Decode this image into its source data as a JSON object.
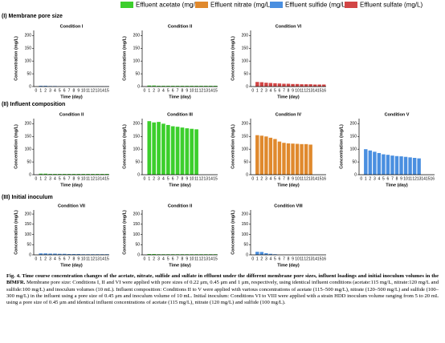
{
  "legend": [
    {
      "name": "Effluent acetate (mg/L)",
      "color": "#3ccf2c"
    },
    {
      "name": "Effluent nitrate (mg/L)",
      "color": "#e0892d"
    },
    {
      "name": "Effluent sulfide (mg/L)",
      "color": "#4a8fe0"
    },
    {
      "name": "Effluent sulfate (mg/L)",
      "color": "#d24545"
    }
  ],
  "rows": [
    {
      "label": "(I) Membrane pore size",
      "charts": [
        {
          "type": "bar",
          "title": "Condition I",
          "ylabel": "Concentration (mg/L)",
          "xlabel": "Time (day)",
          "color": "#4a8fe0",
          "categories": [
            0,
            1,
            2,
            3,
            4,
            5,
            6,
            7,
            8,
            9,
            10,
            11,
            12,
            13,
            14,
            15
          ],
          "values": [
            null,
            3,
            3,
            2,
            2,
            1,
            1,
            1,
            1,
            1,
            1,
            1,
            1,
            1,
            1,
            1
          ],
          "ylim": [
            0,
            220
          ],
          "yticks": [
            0,
            50,
            100,
            150,
            200
          ]
        },
        {
          "type": "bar",
          "title": "Condition II",
          "ylabel": "Concentration (mg/L)",
          "xlabel": "Time (day)",
          "color": "#3ccf2c",
          "categories": [
            0,
            1,
            2,
            3,
            4,
            5,
            6,
            7,
            8,
            9,
            10,
            11,
            12,
            13,
            14,
            15
          ],
          "values": [
            null,
            4,
            4,
            3,
            3,
            3,
            3,
            3,
            3,
            3,
            3,
            3,
            3,
            3,
            3,
            3
          ],
          "ylim": [
            0,
            220
          ],
          "yticks": [
            0,
            50,
            100,
            150,
            200
          ]
        },
        {
          "type": "bar",
          "title": "Condition VI",
          "ylabel": "Concentration (mg/L)",
          "xlabel": "Time (day)",
          "color": "#d24545",
          "categories": [
            0,
            1,
            2,
            3,
            4,
            5,
            6,
            7,
            8,
            9,
            10,
            11,
            12,
            13,
            14,
            15,
            16
          ],
          "values": [
            null,
            18,
            17,
            15,
            14,
            13,
            12,
            11,
            11,
            10,
            10,
            9,
            9,
            9,
            8,
            8,
            8
          ],
          "ylim": [
            0,
            220
          ],
          "yticks": [
            0,
            50,
            100,
            150,
            200
          ]
        }
      ]
    },
    {
      "label": "(II) Influent composition",
      "charts": [
        {
          "type": "bar",
          "title": "Condition II",
          "ylabel": "Concentration (mg/L)",
          "xlabel": "Time (day)",
          "color": "#3ccf2c",
          "categories": [
            0,
            1,
            2,
            3,
            4,
            5,
            6,
            7,
            8,
            9,
            10,
            11,
            12,
            13,
            14,
            15
          ],
          "values": [
            null,
            4,
            4,
            3,
            3,
            3,
            3,
            3,
            3,
            3,
            3,
            3,
            3,
            3,
            3,
            3
          ],
          "ylim": [
            0,
            220
          ],
          "yticks": [
            0,
            50,
            100,
            150,
            200
          ]
        },
        {
          "type": "bar",
          "title": "Condition III",
          "ylabel": "Concentration (mg/L)",
          "xlabel": "Time (day)",
          "color": "#3ccf2c",
          "categories": [
            0,
            1,
            2,
            3,
            4,
            5,
            6,
            7,
            8,
            9,
            10,
            11,
            12,
            13,
            14,
            15
          ],
          "values": [
            null,
            210,
            205,
            207,
            200,
            195,
            190,
            188,
            185,
            182,
            180,
            178,
            null,
            null,
            null,
            null
          ],
          "ylim": [
            0,
            220
          ],
          "yticks": [
            0,
            50,
            100,
            150,
            200
          ]
        },
        {
          "type": "bar",
          "title": "Condition IV",
          "ylabel": "Concentration (mg/L)",
          "xlabel": "Time (day)",
          "color": "#e0892d",
          "categories": [
            0,
            1,
            2,
            3,
            4,
            5,
            6,
            7,
            8,
            9,
            10,
            11,
            12,
            13,
            14,
            15,
            16
          ],
          "values": [
            null,
            155,
            153,
            150,
            145,
            140,
            130,
            125,
            123,
            122,
            121,
            120,
            120,
            118,
            null,
            null,
            null
          ],
          "ylim": [
            0,
            220
          ],
          "yticks": [
            0,
            50,
            100,
            150,
            200
          ]
        },
        {
          "type": "bar",
          "title": "Condition V",
          "ylabel": "Concentration (mg/L)",
          "xlabel": "Time (day)",
          "color": "#4a8fe0",
          "categories": [
            0,
            1,
            2,
            3,
            4,
            5,
            6,
            7,
            8,
            9,
            10,
            11,
            12,
            13,
            14,
            15,
            16
          ],
          "values": [
            null,
            100,
            95,
            90,
            85,
            80,
            78,
            75,
            73,
            72,
            70,
            68,
            66,
            64,
            null,
            null,
            null
          ],
          "ylim": [
            0,
            220
          ],
          "yticks": [
            0,
            50,
            100,
            150,
            200
          ]
        }
      ]
    },
    {
      "label": "(III) Initial inoculum",
      "charts": [
        {
          "type": "bar",
          "title": "Condition VII",
          "ylabel": "Concentration (mg/L)",
          "xlabel": "Time (day)",
          "color": "#4a8fe0",
          "categories": [
            0,
            1,
            2,
            3,
            4,
            5,
            6,
            7,
            8,
            9,
            10,
            11,
            12,
            13,
            14,
            15
          ],
          "values": [
            null,
            7,
            7,
            6,
            6,
            5,
            5,
            4,
            4,
            4,
            3,
            3,
            3,
            3,
            3,
            3
          ],
          "ylim": [
            0,
            220
          ],
          "yticks": [
            0,
            50,
            100,
            150,
            200
          ]
        },
        {
          "type": "bar",
          "title": "Condition II",
          "ylabel": "Concentration (mg/L)",
          "xlabel": "Time (day)",
          "color": "#3ccf2c",
          "categories": [
            0,
            1,
            2,
            3,
            4,
            5,
            6,
            7,
            8,
            9,
            10,
            11,
            12,
            13,
            14,
            15
          ],
          "values": [
            null,
            4,
            4,
            3,
            3,
            3,
            3,
            3,
            3,
            3,
            3,
            3,
            3,
            3,
            3,
            3
          ],
          "ylim": [
            0,
            220
          ],
          "yticks": [
            0,
            50,
            100,
            150,
            200
          ]
        },
        {
          "type": "bar",
          "title": "Condition VIII",
          "ylabel": "Concentration (mg/L)",
          "xlabel": "Time (day)",
          "color": "#4a8fe0",
          "categories": [
            0,
            1,
            2,
            3,
            4,
            5,
            6,
            7,
            8,
            9,
            10,
            11,
            12,
            13,
            14,
            15,
            16
          ],
          "values": [
            null,
            15,
            14,
            8,
            5,
            3,
            null,
            null,
            null,
            null,
            null,
            null,
            null,
            null,
            null,
            null,
            null
          ],
          "ylim": [
            0,
            220
          ],
          "yticks": [
            0,
            50,
            100,
            150,
            200
          ]
        }
      ]
    }
  ],
  "caption": {
    "bold": "Fig. 4. Time course concentration changes of the acetate, nitrate, sulfide and sulfate in effluent under the different membrane pore sizes, influent loadings and initial inoculum volumes in the BfMFR.",
    "text": "Membrane pore size: Conditions I, II and VI were applied with pore sizes of 0.22 μm, 0.45 μm and 1 μm, respectively, using identical influent conditions (acetate:115 mg/L, nitrate:120 mg/L and sulfide:100 mg/L) and inoculum volumes (10 mL). Influent composition: Conditions II to V were applied with various concentrations of acetate (115–500 mg/L), nitrate (120–500 mg/L) and sulfide (100–300 mg/L) in the influent using a pore size of 0.45 μm and inoculum volume of 10 mL. Initial inoculum: Conditions VI to VIII were applied with a strain HDD inoculum volume ranging from 5 to 20 mL using a pore size of 0.45 μm and identical influent concentrations of acetate (115 mg/L), nitrate (120 mg/L) and sulfide (100 mg/L)."
  }
}
